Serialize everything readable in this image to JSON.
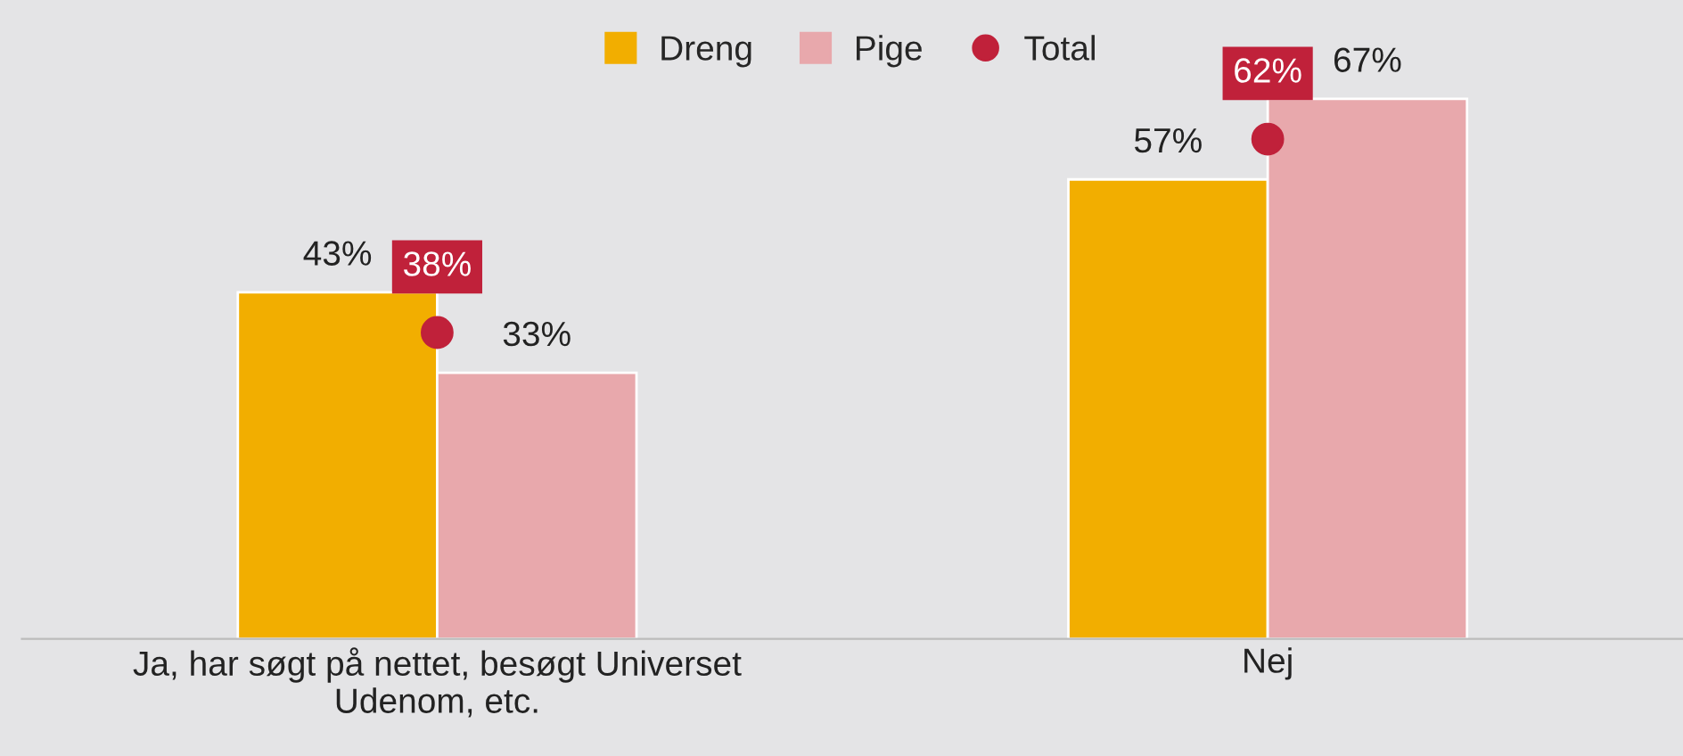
{
  "chart_data": {
    "type": "bar",
    "categories": [
      "Ja, har søgt på nettet, besøgt Universet\nUdenom, etc.",
      "Nej"
    ],
    "series": [
      {
        "name": "Dreng",
        "color": "#f2ae00",
        "values": [
          43,
          57
        ],
        "value_labels": [
          "43%",
          "57%"
        ]
      },
      {
        "name": "Pige",
        "color": "#e8a8ac",
        "values": [
          33,
          67
        ],
        "value_labels": [
          "33%",
          "67%"
        ]
      },
      {
        "name": "Total",
        "type": "scatter",
        "color": "#c0213a",
        "values": [
          38,
          62
        ],
        "value_labels": [
          "38%",
          "62%"
        ]
      }
    ],
    "tick_labels": "x",
    "legend": "top",
    "grid": false,
    "marker": "circle"
  }
}
